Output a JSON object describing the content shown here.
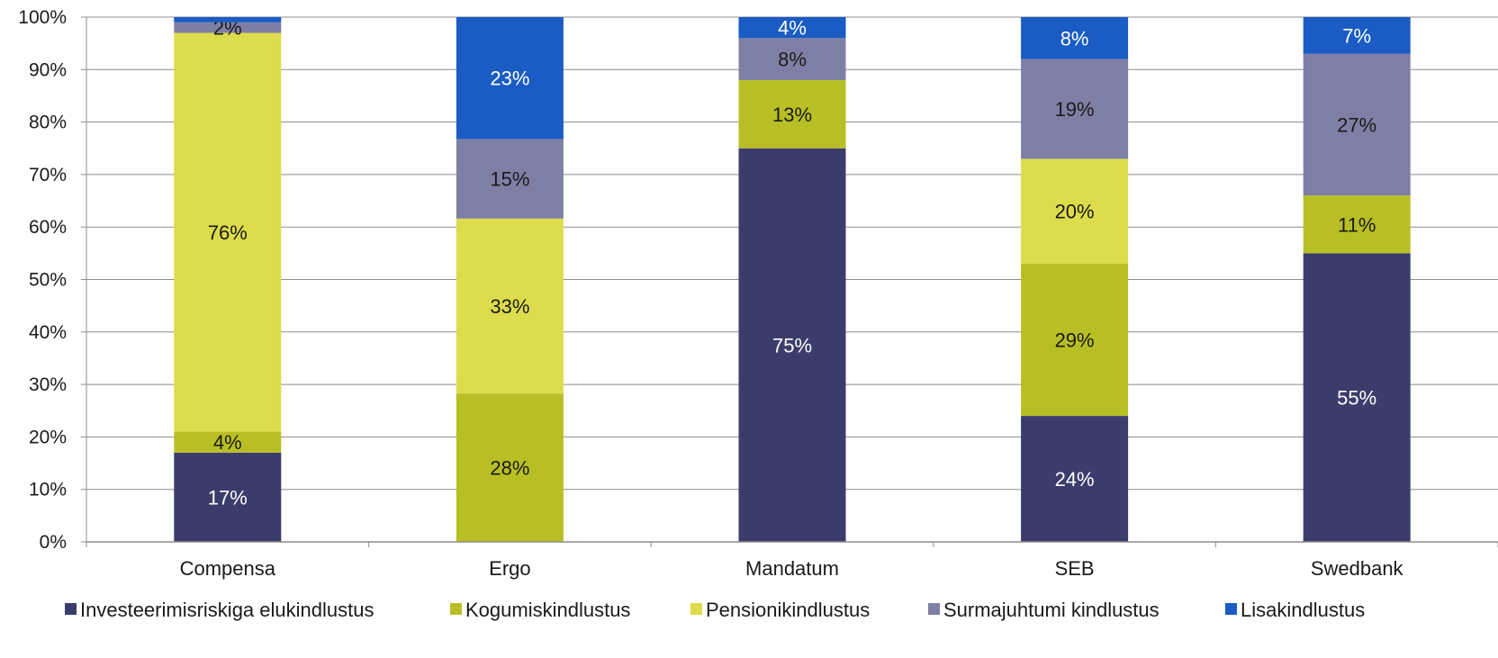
{
  "chart_data": {
    "type": "bar",
    "stacked": true,
    "percent": true,
    "categories": [
      "Compensa",
      "Ergo",
      "Mandatum",
      "SEB",
      "Swedbank"
    ],
    "series": [
      {
        "name": "Investeerimisriskiga elukindlustus",
        "color": "#3c3c6c",
        "label_color": "#ffffff",
        "values": [
          17,
          0,
          75,
          24,
          55
        ],
        "labels": [
          "17%",
          "",
          "75%",
          "24%",
          "55%"
        ]
      },
      {
        "name": "Kogumiskindlustus",
        "color": "#b8bf24",
        "label_color": "#1a1a1a",
        "values": [
          4,
          28,
          13,
          29,
          11
        ],
        "labels": [
          "4%",
          "28%",
          "13%",
          "29%",
          "11%"
        ]
      },
      {
        "name": "Pensionikindlustus",
        "color": "#dcdc4c",
        "label_color": "#1a1a1a",
        "values": [
          76,
          33,
          0,
          20,
          0
        ],
        "labels": [
          "76%",
          "33%",
          "",
          "20%",
          ""
        ]
      },
      {
        "name": "Surmajuhtumi kindlustus",
        "color": "#7f7fa6",
        "label_color": "#1a1a1a",
        "values": [
          2,
          15,
          8,
          19,
          27
        ],
        "labels": [
          "2%",
          "15%",
          "8%",
          "19%",
          "27%"
        ]
      },
      {
        "name": "Lisakindlustus",
        "color": "#1a5cc4",
        "label_color": "#ffffff",
        "values": [
          1,
          23,
          4,
          8,
          7
        ],
        "labels": [
          "",
          "23%",
          "4%",
          "8%",
          "7%"
        ]
      }
    ],
    "y_ticks": [
      "0%",
      "10%",
      "20%",
      "30%",
      "40%",
      "50%",
      "60%",
      "70%",
      "80%",
      "90%",
      "100%"
    ],
    "ylim": [
      0,
      100
    ],
    "grid": true,
    "legend_position": "bottom"
  }
}
